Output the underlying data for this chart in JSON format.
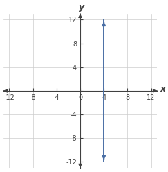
{
  "xlim": [
    -13,
    13
  ],
  "ylim": [
    -13,
    13
  ],
  "xticks": [
    -12,
    -8,
    -4,
    0,
    4,
    8,
    12
  ],
  "yticks": [
    -12,
    -8,
    -4,
    0,
    4,
    8,
    12
  ],
  "vertical_line_x": 4,
  "line_color": "#4a6fa5",
  "line_width": 1.4,
  "axis_color": "#404040",
  "grid_color": "#cccccc",
  "background_color": "#ffffff",
  "xlabel": "x",
  "ylabel": "y",
  "tick_fontsize": 7,
  "label_fontsize": 9
}
